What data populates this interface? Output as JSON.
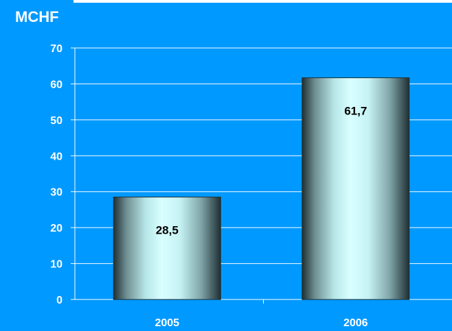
{
  "chart_data": {
    "type": "bar",
    "title": "MCHF",
    "categories": [
      "2005",
      "2006"
    ],
    "values": [
      28.5,
      61.7
    ],
    "value_labels": [
      "28,5",
      "61,7"
    ],
    "yticks": [
      "0",
      "10",
      "20",
      "30",
      "40",
      "50",
      "60",
      "70"
    ],
    "ylim": [
      0,
      70
    ],
    "grid": true,
    "colors": {
      "background": "#0099ff",
      "gridline": "#ffffff",
      "bar_edge": "#1f2f33",
      "bar_highlight": "#d9ffff",
      "axis_text": "#ffffff",
      "value_text": "#000000"
    }
  }
}
